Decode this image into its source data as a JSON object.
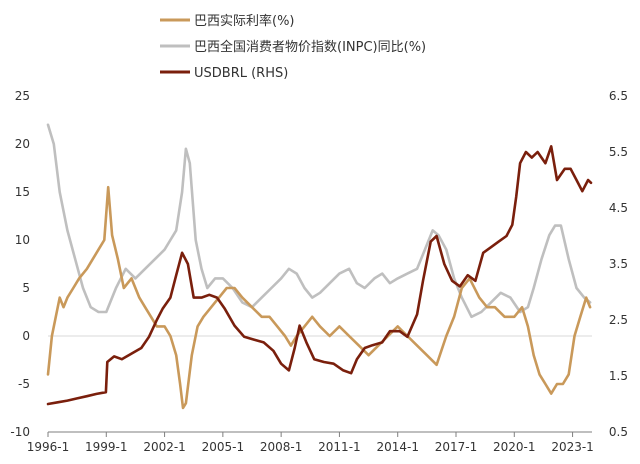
{
  "chart_data": {
    "type": "line",
    "x_axis": {
      "ticks": [
        "1996-1",
        "1999-1",
        "2002-1",
        "2005-1",
        "2008-1",
        "2011-1",
        "2014-1",
        "2017-1",
        "2020-1",
        "2023-1"
      ],
      "range": [
        1996.0,
        2024.0
      ]
    },
    "y_left": {
      "ticks": [
        "25",
        "20",
        "15",
        "10",
        "5",
        "0",
        "-5",
        "-10"
      ],
      "range": [
        -10,
        25
      ]
    },
    "y_right": {
      "ticks": [
        "6.5",
        "5.5",
        "4.5",
        "3.5",
        "2.5",
        "1.5",
        "0.5"
      ],
      "range": [
        0.5,
        6.5
      ]
    },
    "legend": {
      "placement": "top-left",
      "items": [
        {
          "label": "巴西实际利率(%)",
          "color": "#c9995a"
        },
        {
          "label": "巴西全国消费者物价指数(INPC)同比(%)",
          "color": "#bfbfbf"
        },
        {
          "label": "USDBRL (RHS)",
          "color": "#7a1f0c"
        }
      ]
    },
    "series": [
      {
        "name": "巴西全国消费者物价指数(INPC)同比(%)",
        "axis": "left",
        "color": "#bfbfbf",
        "x": [
          1996.0,
          1996.3,
          1996.6,
          1997.0,
          1997.4,
          1997.8,
          1998.2,
          1998.6,
          1999.0,
          1999.5,
          2000.0,
          2000.5,
          2001.0,
          2001.5,
          2002.0,
          2002.3,
          2002.6,
          2002.9,
          2003.1,
          2003.3,
          2003.6,
          2003.9,
          2004.2,
          2004.6,
          2005.0,
          2005.5,
          2006.0,
          2006.5,
          2007.0,
          2007.5,
          2008.0,
          2008.4,
          2008.8,
          2009.2,
          2009.6,
          2010.0,
          2010.5,
          2011.0,
          2011.5,
          2011.9,
          2012.3,
          2012.8,
          2013.2,
          2013.6,
          2014.0,
          2014.5,
          2015.0,
          2015.4,
          2015.8,
          2016.1,
          2016.5,
          2016.9,
          2017.3,
          2017.8,
          2018.3,
          2018.8,
          2019.3,
          2019.8,
          2020.3,
          2020.7,
          2021.0,
          2021.4,
          2021.8,
          2022.1,
          2022.4,
          2022.8,
          2023.2,
          2023.6,
          2023.9
        ],
        "y": [
          22,
          20,
          15,
          11,
          8,
          5,
          3,
          2.5,
          2.5,
          5,
          7,
          6,
          7,
          8,
          9,
          10,
          11,
          15,
          19.5,
          18,
          10,
          7,
          5,
          6,
          6,
          5,
          3.5,
          3,
          4,
          5,
          6,
          7,
          6.5,
          5,
          4,
          4.5,
          5.5,
          6.5,
          7,
          5.5,
          5,
          6,
          6.5,
          5.5,
          6,
          6.5,
          7,
          9,
          11,
          10.5,
          9,
          6,
          4,
          2,
          2.5,
          3.5,
          4.5,
          4,
          2.5,
          3,
          5,
          8,
          10.5,
          11.5,
          11.5,
          8,
          5,
          4,
          3.5
        ]
      },
      {
        "name": "巴西实际利率(%)",
        "axis": "left",
        "color": "#c9995a",
        "x": [
          1996.0,
          1996.2,
          1996.4,
          1996.6,
          1996.8,
          1997.0,
          1997.3,
          1997.6,
          1998.0,
          1998.3,
          1998.6,
          1998.9,
          1999.1,
          1999.3,
          1999.6,
          1999.9,
          2000.3,
          2000.7,
          2001.0,
          2001.3,
          2001.6,
          2002.0,
          2002.3,
          2002.6,
          2002.8,
          2002.95,
          2003.1,
          2003.4,
          2003.7,
          2004.0,
          2004.4,
          2004.8,
          2005.2,
          2005.6,
          2006.0,
          2006.5,
          2007.0,
          2007.4,
          2007.8,
          2008.2,
          2008.5,
          2008.8,
          2009.2,
          2009.6,
          2010.0,
          2010.5,
          2011.0,
          2011.5,
          2012.0,
          2012.5,
          2013.0,
          2013.5,
          2014.0,
          2014.5,
          2015.0,
          2015.5,
          2016.0,
          2016.5,
          2016.9,
          2017.3,
          2017.7,
          2018.2,
          2018.6,
          2019.0,
          2019.5,
          2020.0,
          2020.4,
          2020.7,
          2021.0,
          2021.3,
          2021.6,
          2021.9,
          2022.2,
          2022.5,
          2022.8,
          2023.1,
          2023.4,
          2023.7,
          2023.9
        ],
        "y": [
          -4,
          0,
          2,
          4,
          3,
          4,
          5,
          6,
          7,
          8,
          9,
          10,
          15.5,
          10.5,
          8,
          5,
          6,
          4,
          3,
          2,
          1,
          1,
          0,
          -2,
          -5,
          -7.5,
          -7,
          -2,
          1,
          2,
          3,
          4,
          5,
          5,
          4,
          3,
          2,
          2,
          1,
          0,
          -1,
          0,
          1,
          2,
          1,
          0,
          1,
          0,
          -1,
          -2,
          -1,
          0,
          1,
          0,
          -1,
          -2,
          -3,
          0,
          2,
          5,
          6,
          4,
          3,
          3,
          2,
          2,
          3,
          1,
          -2,
          -4,
          -5,
          -6,
          -5,
          -5,
          -4,
          0,
          2,
          4,
          3
        ]
      },
      {
        "name": "USDBRL (RHS)",
        "axis": "right",
        "color": "#7a1f0c",
        "x": [
          1996.0,
          1996.5,
          1997.0,
          1997.5,
          1998.0,
          1998.5,
          1998.98,
          1999.05,
          1999.4,
          1999.8,
          2000.3,
          2000.8,
          2001.2,
          2001.6,
          2001.9,
          2002.3,
          2002.6,
          2002.9,
          2003.2,
          2003.5,
          2003.9,
          2004.3,
          2004.7,
          2005.1,
          2005.6,
          2006.1,
          2006.6,
          2007.1,
          2007.6,
          2008.0,
          2008.4,
          2008.7,
          2008.95,
          2009.3,
          2009.7,
          2010.2,
          2010.7,
          2011.2,
          2011.6,
          2011.9,
          2012.3,
          2012.7,
          2013.2,
          2013.6,
          2014.1,
          2014.5,
          2015.0,
          2015.3,
          2015.7,
          2016.0,
          2016.4,
          2016.8,
          2017.2,
          2017.6,
          2018.0,
          2018.4,
          2018.8,
          2019.2,
          2019.6,
          2019.9,
          2020.1,
          2020.3,
          2020.6,
          2020.9,
          2021.2,
          2021.6,
          2021.9,
          2022.2,
          2022.6,
          2022.9,
          2023.2,
          2023.5,
          2023.8,
          2023.95
        ],
        "y": [
          1.0,
          1.03,
          1.06,
          1.1,
          1.14,
          1.18,
          1.21,
          1.75,
          1.85,
          1.8,
          1.9,
          2.0,
          2.2,
          2.5,
          2.7,
          2.9,
          3.3,
          3.7,
          3.5,
          2.9,
          2.9,
          2.95,
          2.9,
          2.7,
          2.4,
          2.2,
          2.15,
          2.1,
          1.95,
          1.72,
          1.6,
          2.0,
          2.4,
          2.1,
          1.8,
          1.75,
          1.72,
          1.6,
          1.55,
          1.8,
          2.0,
          2.05,
          2.1,
          2.3,
          2.3,
          2.2,
          2.6,
          3.2,
          3.9,
          4.0,
          3.5,
          3.2,
          3.1,
          3.3,
          3.2,
          3.7,
          3.8,
          3.9,
          4.0,
          4.2,
          4.7,
          5.3,
          5.5,
          5.4,
          5.5,
          5.3,
          5.6,
          5.0,
          5.2,
          5.2,
          5.0,
          4.8,
          5.0,
          4.95
        ]
      }
    ]
  }
}
